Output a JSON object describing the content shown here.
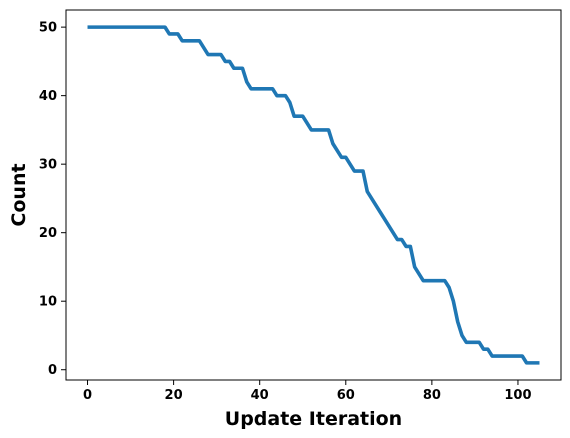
{
  "chart_data": {
    "type": "line",
    "title": "",
    "xlabel": "Update Iteration",
    "ylabel": "Count",
    "xlim": [
      -5,
      110
    ],
    "ylim": [
      -1.5,
      52.5
    ],
    "xticks": [
      0,
      20,
      40,
      60,
      80,
      100
    ],
    "yticks": [
      0,
      10,
      20,
      30,
      40,
      50
    ],
    "grid": false,
    "series": [
      {
        "color": "#1f77b4",
        "x": [
          0,
          18,
          19,
          21,
          22,
          26,
          28,
          31,
          32,
          33,
          34,
          36,
          37,
          38,
          39,
          43,
          44,
          46,
          47,
          48,
          50,
          52,
          56,
          57,
          59,
          60,
          62,
          63,
          64,
          65,
          72,
          73,
          74,
          75,
          76,
          78,
          83,
          84,
          85,
          86,
          87,
          88,
          91,
          92,
          93,
          94,
          101,
          102,
          104,
          105
        ],
        "y": [
          50,
          50,
          49,
          49,
          48,
          48,
          46,
          46,
          45,
          45,
          44,
          44,
          42,
          41,
          41,
          41,
          40,
          40,
          39,
          37,
          37,
          35,
          35,
          33,
          31,
          31,
          29,
          29,
          29,
          26,
          19,
          19,
          18,
          18,
          15,
          13,
          13,
          12,
          10,
          7,
          5,
          4,
          4,
          3,
          3,
          2,
          2,
          1,
          1,
          1
        ]
      }
    ]
  }
}
